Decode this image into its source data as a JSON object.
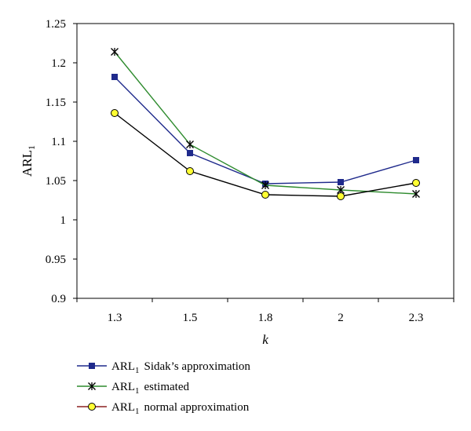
{
  "chart_data": {
    "type": "line",
    "categories": [
      "1.3",
      "1.5",
      "1.8",
      "2",
      "2.3"
    ],
    "ylabel": "ARL",
    "ylabel_sub": "1",
    "xlabel": "k",
    "ylim": [
      0.9,
      1.25
    ],
    "yticks": [
      "0.9",
      "0.95",
      "1",
      "1.05",
      "1.1",
      "1.15",
      "1.2",
      "1.25"
    ],
    "grid": false,
    "legend_position": "bottom-left",
    "series": [
      {
        "name": "Sidak’s approximation",
        "legend_prefix": "ARL",
        "legend_sub": "1",
        "values": [
          1.182,
          1.085,
          1.046,
          1.048,
          1.076
        ],
        "line_color": "#1f2a8c",
        "marker": "square",
        "marker_color": "#1f2a8c"
      },
      {
        "name": "estimated",
        "legend_prefix": "ARL",
        "legend_sub": "1",
        "values": [
          1.214,
          1.096,
          1.044,
          1.038,
          1.033
        ],
        "line_color": "#2e8b2e",
        "marker": "star",
        "marker_color": "#000000"
      },
      {
        "name": "normal approximation",
        "legend_prefix": "ARL",
        "legend_sub": "1",
        "values": [
          1.136,
          1.062,
          1.032,
          1.03,
          1.047
        ],
        "line_color": "#000000",
        "legend_line_color": "#8b2020",
        "marker": "circle",
        "marker_color": "#ffff33"
      }
    ]
  }
}
